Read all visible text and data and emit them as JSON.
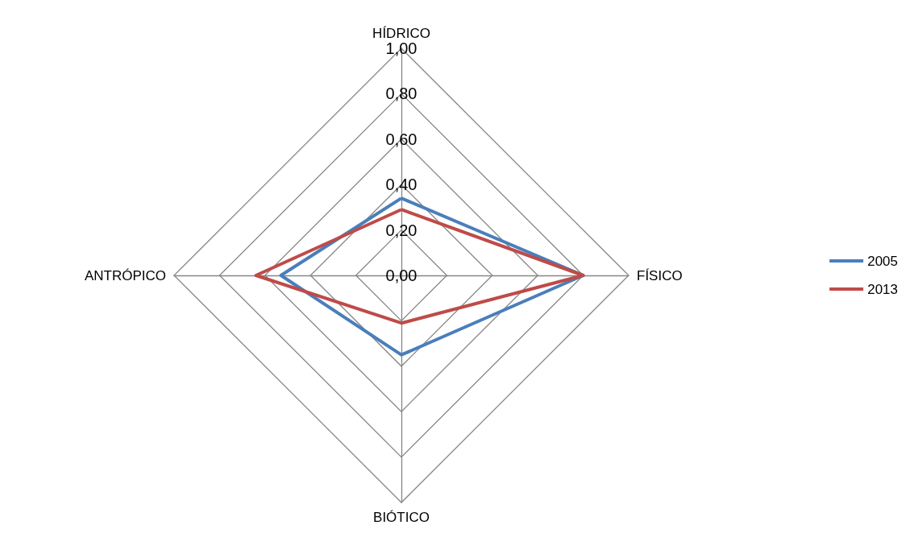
{
  "chart_data": {
    "type": "radar",
    "categories": [
      "HÍDRICO",
      "FÍSICO",
      "BIÓTICO",
      "ANTRÓPICO"
    ],
    "series": [
      {
        "name": "2005",
        "color": "#4a7ebb",
        "values": [
          0.34,
          0.8,
          0.35,
          0.53
        ]
      },
      {
        "name": "2013",
        "color": "#be4b48",
        "values": [
          0.29,
          0.8,
          0.21,
          0.64
        ]
      }
    ],
    "ylim": [
      0,
      1
    ],
    "yticks": [
      {
        "value": 0,
        "label": "0,00"
      },
      {
        "value": 0.2,
        "label": "0,20"
      },
      {
        "value": 0.4,
        "label": "0,40"
      },
      {
        "value": 0.6,
        "label": "0,60"
      },
      {
        "value": 0.8,
        "label": "0,80"
      },
      {
        "value": 1,
        "label": "1,00"
      }
    ],
    "grid": true,
    "legend": "right",
    "marker": "none",
    "line_style": "solid"
  }
}
